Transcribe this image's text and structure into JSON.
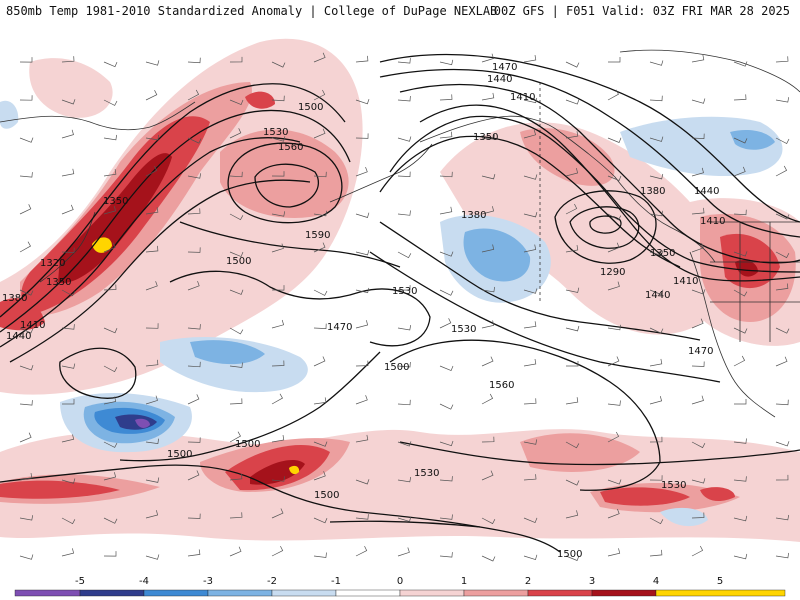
{
  "header": {
    "title_left": "850mb Temp 1981-2010 Standardized Anomaly | College of DuPage NEXLAB",
    "title_right": "00Z GFS | F051 Valid: 03Z FRI MAR 28 2025"
  },
  "colors": {
    "neg5": "#7e4fb3",
    "neg4": "#2f3d8c",
    "neg3": "#3e8ad4",
    "neg2": "#7db3e3",
    "neg1": "#c8dcf0",
    "neutral": "#ffffff",
    "pos1": "#f5d3d3",
    "pos2": "#ec9f9f",
    "pos3": "#d9434a",
    "pos4": "#a5121b",
    "pos5": "#ffd500",
    "contour": "#111111",
    "coast": "#333333"
  },
  "colorbar": {
    "ticks": [
      "-5",
      "-4",
      "-3",
      "-2",
      "-1",
      "0",
      "1",
      "2",
      "3",
      "4",
      "5"
    ]
  },
  "contour_labels": [
    "1470",
    "1440",
    "1410",
    "1350",
    "1500",
    "1530",
    "1560",
    "1590",
    "1350",
    "1380",
    "1440",
    "1410",
    "1500",
    "1530",
    "1470",
    "1500",
    "1530",
    "1380",
    "1290",
    "1350",
    "1410",
    "1440",
    "1470",
    "1560",
    "1530",
    "1530",
    "1500",
    "1500",
    "1500",
    "1320",
    "1350",
    "1380",
    "1410",
    "1440",
    "1500"
  ]
}
